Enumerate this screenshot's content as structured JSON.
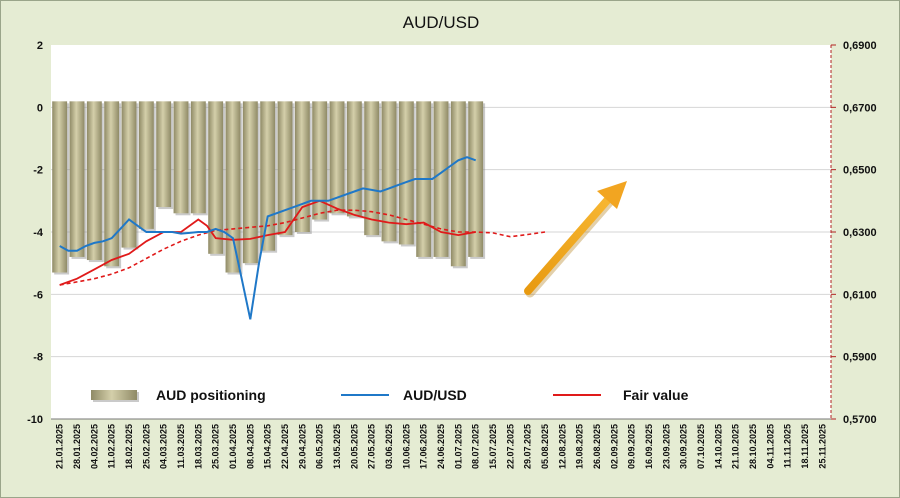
{
  "chart_data": {
    "type": "bar",
    "title": "AUD/USD",
    "x": [
      "21.01.2025",
      "28.01.2025",
      "04.02.2025",
      "11.02.2025",
      "18.02.2025",
      "25.02.2025",
      "04.03.2025",
      "11.03.2025",
      "18.03.2025",
      "25.03.2025",
      "01.04.2025",
      "08.04.2025",
      "15.04.2025",
      "22.04.2025",
      "29.04.2025",
      "06.05.2025",
      "13.05.2025",
      "20.05.2025",
      "27.05.2025",
      "03.06.2025",
      "10.06.2025",
      "17.06.2025",
      "24.06.2025",
      "01.07.2025",
      "08.07.2025",
      "15.07.2025",
      "22.07.2025",
      "29.07.2025",
      "05.08.2025",
      "12.08.2025",
      "19.08.2025",
      "26.08.2025",
      "02.09.2025",
      "09.09.2025",
      "16.09.2025",
      "23.09.2025",
      "30.09.2025",
      "07.10.2025",
      "14.10.2025",
      "21.10.2025",
      "28.10.2025",
      "04.11.2025",
      "11.11.2025",
      "18.11.2025",
      "25.11.2025"
    ],
    "y_left": {
      "ticks": [
        "2",
        "0",
        "-2",
        "-4",
        "-6",
        "-8",
        "-10"
      ],
      "range": [
        -10,
        2
      ]
    },
    "y_right": {
      "ticks": [
        "0,6900",
        "0,6700",
        "0,6500",
        "0,6300",
        "0,6100",
        "0,5900",
        "0,5700"
      ],
      "range": [
        0.57,
        0.69
      ]
    },
    "series": [
      {
        "name": "AUD positioning",
        "kind": "bar",
        "axis": "left",
        "color": "#b9b38e",
        "x": [
          "21.01.2025",
          "28.01.2025",
          "04.02.2025",
          "11.02.2025",
          "18.02.2025",
          "25.02.2025",
          "04.03.2025",
          "11.03.2025",
          "18.03.2025",
          "25.03.2025",
          "01.04.2025",
          "08.04.2025",
          "15.04.2025",
          "22.04.2025",
          "29.04.2025",
          "06.05.2025",
          "13.05.2025",
          "20.05.2025",
          "27.05.2025",
          "03.06.2025",
          "10.06.2025",
          "17.06.2025",
          "24.06.2025",
          "01.07.2025",
          "08.07.2025"
        ],
        "values": [
          -5.3,
          -4.8,
          -4.9,
          -5.1,
          -4.5,
          -3.9,
          -3.2,
          -3.4,
          -3.4,
          -4.7,
          -5.3,
          -5.0,
          -4.6,
          -4.1,
          -4.0,
          -3.6,
          -3.4,
          -3.5,
          -4.1,
          -4.3,
          -4.4,
          -4.8,
          -4.8,
          -5.1,
          -4.8
        ]
      },
      {
        "name": "AUD/USD",
        "kind": "line",
        "axis": "right",
        "color": "#1f78c8",
        "x": [
          0,
          0.5,
          1,
          1.5,
          2,
          2.5,
          3,
          3.5,
          4,
          4.5,
          5,
          5.5,
          6,
          6.5,
          7,
          7.5,
          8,
          8.5,
          9,
          9.5,
          10,
          10.5,
          11,
          11.5,
          12,
          12.5,
          13,
          13.5,
          14,
          14.5,
          15,
          15.5,
          16,
          16.5,
          17,
          17.5,
          18,
          18.5,
          19,
          19.5,
          20,
          20.5,
          21,
          21.5,
          22,
          22.5,
          23,
          23.5,
          24
        ],
        "values": [
          0.6255,
          0.624,
          0.624,
          0.6255,
          0.6265,
          0.627,
          0.628,
          0.631,
          0.634,
          0.632,
          0.63,
          0.63,
          0.63,
          0.63,
          0.6295,
          0.6297,
          0.63,
          0.63,
          0.631,
          0.63,
          0.628,
          0.615,
          0.602,
          0.62,
          0.635,
          0.636,
          0.637,
          0.638,
          0.639,
          0.64,
          0.64,
          0.64,
          0.641,
          0.642,
          0.643,
          0.644,
          0.6435,
          0.643,
          0.644,
          0.645,
          0.646,
          0.647,
          0.647,
          0.647,
          0.649,
          0.651,
          0.653,
          0.654,
          0.653
        ]
      },
      {
        "name": "Fair value",
        "kind": "line",
        "axis": "right",
        "color": "#e01a1a",
        "x": [
          0,
          1,
          2,
          3,
          4,
          5,
          6,
          7,
          8,
          8.5,
          9,
          10,
          11,
          12,
          13,
          14,
          15,
          16,
          17,
          18,
          19,
          20,
          21,
          22,
          23,
          24
        ],
        "values": [
          0.613,
          0.615,
          0.618,
          0.621,
          0.623,
          0.627,
          0.63,
          0.63,
          0.634,
          0.632,
          0.628,
          0.6275,
          0.6278,
          0.629,
          0.63,
          0.638,
          0.64,
          0.6375,
          0.6355,
          0.634,
          0.633,
          0.6325,
          0.633,
          0.63,
          0.629,
          0.63
        ]
      },
      {
        "name": "Fair value (trend)",
        "kind": "dashed-line",
        "axis": "right",
        "color": "#e01a1a",
        "x": [
          0,
          1,
          2,
          3,
          4,
          5,
          6,
          7,
          8,
          9,
          10,
          11,
          12,
          13,
          14,
          15,
          16,
          17,
          18,
          19,
          20,
          21,
          22,
          23,
          24,
          25,
          26,
          27,
          28
        ],
        "values": [
          0.613,
          0.614,
          0.615,
          0.6165,
          0.6185,
          0.6215,
          0.6245,
          0.627,
          0.629,
          0.6305,
          0.631,
          0.6315,
          0.632,
          0.633,
          0.6345,
          0.636,
          0.637,
          0.637,
          0.6365,
          0.6355,
          0.634,
          0.6325,
          0.631,
          0.63,
          0.63,
          0.6297,
          0.6285,
          0.6292,
          0.63
        ]
      }
    ],
    "legend_position": "bottom",
    "annotations": [
      {
        "type": "arrow",
        "direction": "up-right",
        "color": "#f0a020"
      }
    ],
    "grid": true
  }
}
